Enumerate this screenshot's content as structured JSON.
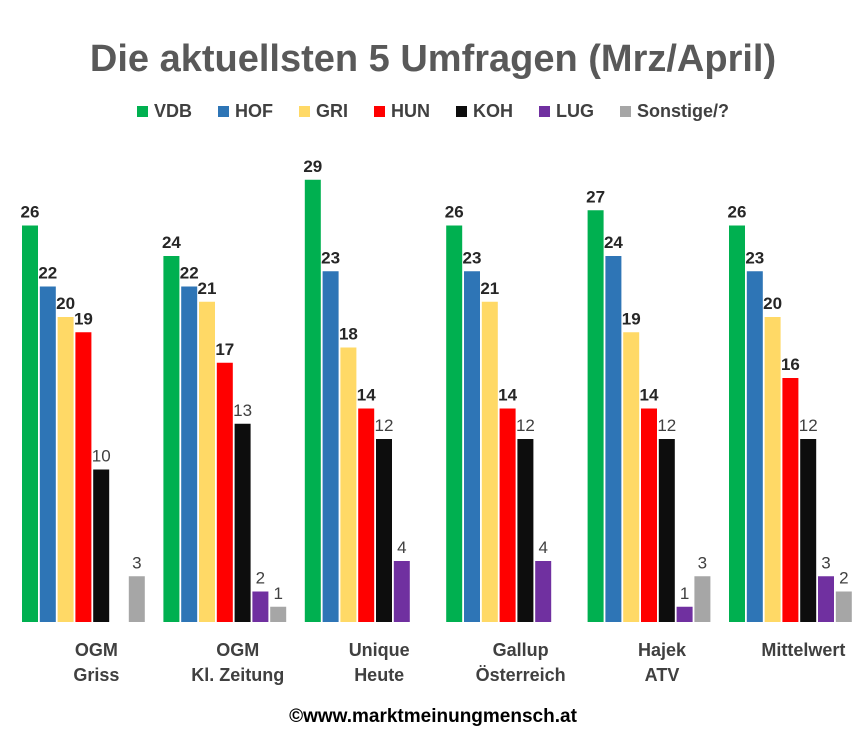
{
  "chart_data": {
    "type": "bar",
    "title": "Die aktuellsten 5 Umfragen (Mrz/April)",
    "categories": [
      [
        "OGM",
        "Griss"
      ],
      [
        "OGM",
        "Kl. Zeitung"
      ],
      [
        "Unique",
        "Heute"
      ],
      [
        "Gallup",
        "Österreich"
      ],
      [
        "Hajek",
        "ATV"
      ],
      [
        "Mittelwert"
      ]
    ],
    "series": [
      {
        "name": "VDB",
        "color": "#00b050",
        "bold_labels": true,
        "values": [
          26,
          24,
          29,
          26,
          27,
          26
        ]
      },
      {
        "name": "HOF",
        "color": "#2e75b6",
        "bold_labels": true,
        "values": [
          22,
          22,
          23,
          23,
          24,
          23
        ]
      },
      {
        "name": "GRI",
        "color": "#ffd966",
        "bold_labels": true,
        "values": [
          20,
          21,
          18,
          21,
          19,
          20
        ]
      },
      {
        "name": "HUN",
        "color": "#ff0000",
        "bold_labels": true,
        "values": [
          19,
          17,
          14,
          14,
          14,
          16
        ]
      },
      {
        "name": "KOH",
        "color": "#0d0d0d",
        "bold_labels": false,
        "values": [
          10,
          13,
          12,
          12,
          12,
          12
        ]
      },
      {
        "name": "LUG",
        "color": "#7030a0",
        "bold_labels": false,
        "values": [
          null,
          2,
          4,
          4,
          1,
          3
        ]
      },
      {
        "name": "Sonstige/?",
        "color": "#a6a6a6",
        "bold_labels": false,
        "values": [
          3,
          1,
          null,
          null,
          3,
          2
        ]
      }
    ],
    "ylim": [
      0,
      32
    ],
    "grid": false,
    "legend_position": "top"
  },
  "footer": "©www.marktmeinungmensch.at"
}
